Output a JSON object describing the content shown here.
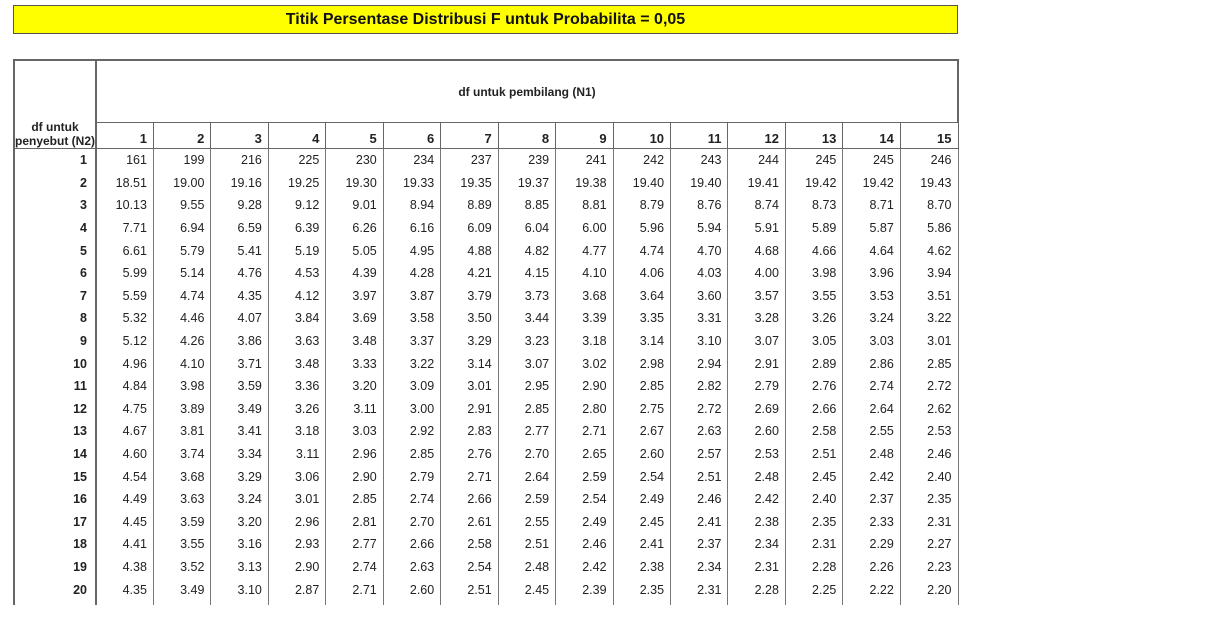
{
  "title": "Titik Persentase Distribusi F untuk Probabilita = 0,05",
  "header": {
    "row_label": "df untuk penyebut (N2)",
    "col_group_label": "df untuk pembilang (N1)"
  },
  "columns": [
    "1",
    "2",
    "3",
    "4",
    "5",
    "6",
    "7",
    "8",
    "9",
    "10",
    "11",
    "12",
    "13",
    "14",
    "15"
  ],
  "rows": [
    {
      "n2": "1",
      "values": [
        "161",
        "199",
        "216",
        "225",
        "230",
        "234",
        "237",
        "239",
        "241",
        "242",
        "243",
        "244",
        "245",
        "245",
        "246"
      ]
    },
    {
      "n2": "2",
      "values": [
        "18.51",
        "19.00",
        "19.16",
        "19.25",
        "19.30",
        "19.33",
        "19.35",
        "19.37",
        "19.38",
        "19.40",
        "19.40",
        "19.41",
        "19.42",
        "19.42",
        "19.43"
      ]
    },
    {
      "n2": "3",
      "values": [
        "10.13",
        "9.55",
        "9.28",
        "9.12",
        "9.01",
        "8.94",
        "8.89",
        "8.85",
        "8.81",
        "8.79",
        "8.76",
        "8.74",
        "8.73",
        "8.71",
        "8.70"
      ]
    },
    {
      "n2": "4",
      "values": [
        "7.71",
        "6.94",
        "6.59",
        "6.39",
        "6.26",
        "6.16",
        "6.09",
        "6.04",
        "6.00",
        "5.96",
        "5.94",
        "5.91",
        "5.89",
        "5.87",
        "5.86"
      ]
    },
    {
      "n2": "5",
      "values": [
        "6.61",
        "5.79",
        "5.41",
        "5.19",
        "5.05",
        "4.95",
        "4.88",
        "4.82",
        "4.77",
        "4.74",
        "4.70",
        "4.68",
        "4.66",
        "4.64",
        "4.62"
      ]
    },
    {
      "n2": "6",
      "values": [
        "5.99",
        "5.14",
        "4.76",
        "4.53",
        "4.39",
        "4.28",
        "4.21",
        "4.15",
        "4.10",
        "4.06",
        "4.03",
        "4.00",
        "3.98",
        "3.96",
        "3.94"
      ]
    },
    {
      "n2": "7",
      "values": [
        "5.59",
        "4.74",
        "4.35",
        "4.12",
        "3.97",
        "3.87",
        "3.79",
        "3.73",
        "3.68",
        "3.64",
        "3.60",
        "3.57",
        "3.55",
        "3.53",
        "3.51"
      ]
    },
    {
      "n2": "8",
      "values": [
        "5.32",
        "4.46",
        "4.07",
        "3.84",
        "3.69",
        "3.58",
        "3.50",
        "3.44",
        "3.39",
        "3.35",
        "3.31",
        "3.28",
        "3.26",
        "3.24",
        "3.22"
      ]
    },
    {
      "n2": "9",
      "values": [
        "5.12",
        "4.26",
        "3.86",
        "3.63",
        "3.48",
        "3.37",
        "3.29",
        "3.23",
        "3.18",
        "3.14",
        "3.10",
        "3.07",
        "3.05",
        "3.03",
        "3.01"
      ]
    },
    {
      "n2": "10",
      "values": [
        "4.96",
        "4.10",
        "3.71",
        "3.48",
        "3.33",
        "3.22",
        "3.14",
        "3.07",
        "3.02",
        "2.98",
        "2.94",
        "2.91",
        "2.89",
        "2.86",
        "2.85"
      ]
    },
    {
      "n2": "11",
      "values": [
        "4.84",
        "3.98",
        "3.59",
        "3.36",
        "3.20",
        "3.09",
        "3.01",
        "2.95",
        "2.90",
        "2.85",
        "2.82",
        "2.79",
        "2.76",
        "2.74",
        "2.72"
      ]
    },
    {
      "n2": "12",
      "values": [
        "4.75",
        "3.89",
        "3.49",
        "3.26",
        "3.11",
        "3.00",
        "2.91",
        "2.85",
        "2.80",
        "2.75",
        "2.72",
        "2.69",
        "2.66",
        "2.64",
        "2.62"
      ]
    },
    {
      "n2": "13",
      "values": [
        "4.67",
        "3.81",
        "3.41",
        "3.18",
        "3.03",
        "2.92",
        "2.83",
        "2.77",
        "2.71",
        "2.67",
        "2.63",
        "2.60",
        "2.58",
        "2.55",
        "2.53"
      ]
    },
    {
      "n2": "14",
      "values": [
        "4.60",
        "3.74",
        "3.34",
        "3.11",
        "2.96",
        "2.85",
        "2.76",
        "2.70",
        "2.65",
        "2.60",
        "2.57",
        "2.53",
        "2.51",
        "2.48",
        "2.46"
      ]
    },
    {
      "n2": "15",
      "values": [
        "4.54",
        "3.68",
        "3.29",
        "3.06",
        "2.90",
        "2.79",
        "2.71",
        "2.64",
        "2.59",
        "2.54",
        "2.51",
        "2.48",
        "2.45",
        "2.42",
        "2.40"
      ]
    },
    {
      "n2": "16",
      "values": [
        "4.49",
        "3.63",
        "3.24",
        "3.01",
        "2.85",
        "2.74",
        "2.66",
        "2.59",
        "2.54",
        "2.49",
        "2.46",
        "2.42",
        "2.40",
        "2.37",
        "2.35"
      ]
    },
    {
      "n2": "17",
      "values": [
        "4.45",
        "3.59",
        "3.20",
        "2.96",
        "2.81",
        "2.70",
        "2.61",
        "2.55",
        "2.49",
        "2.45",
        "2.41",
        "2.38",
        "2.35",
        "2.33",
        "2.31"
      ]
    },
    {
      "n2": "18",
      "values": [
        "4.41",
        "3.55",
        "3.16",
        "2.93",
        "2.77",
        "2.66",
        "2.58",
        "2.51",
        "2.46",
        "2.41",
        "2.37",
        "2.34",
        "2.31",
        "2.29",
        "2.27"
      ]
    },
    {
      "n2": "19",
      "values": [
        "4.38",
        "3.52",
        "3.13",
        "2.90",
        "2.74",
        "2.63",
        "2.54",
        "2.48",
        "2.42",
        "2.38",
        "2.34",
        "2.31",
        "2.28",
        "2.26",
        "2.23"
      ]
    },
    {
      "n2": "20",
      "values": [
        "4.35",
        "3.49",
        "3.10",
        "2.87",
        "2.71",
        "2.60",
        "2.51",
        "2.45",
        "2.39",
        "2.35",
        "2.31",
        "2.28",
        "2.25",
        "2.22",
        "2.20"
      ]
    }
  ]
}
